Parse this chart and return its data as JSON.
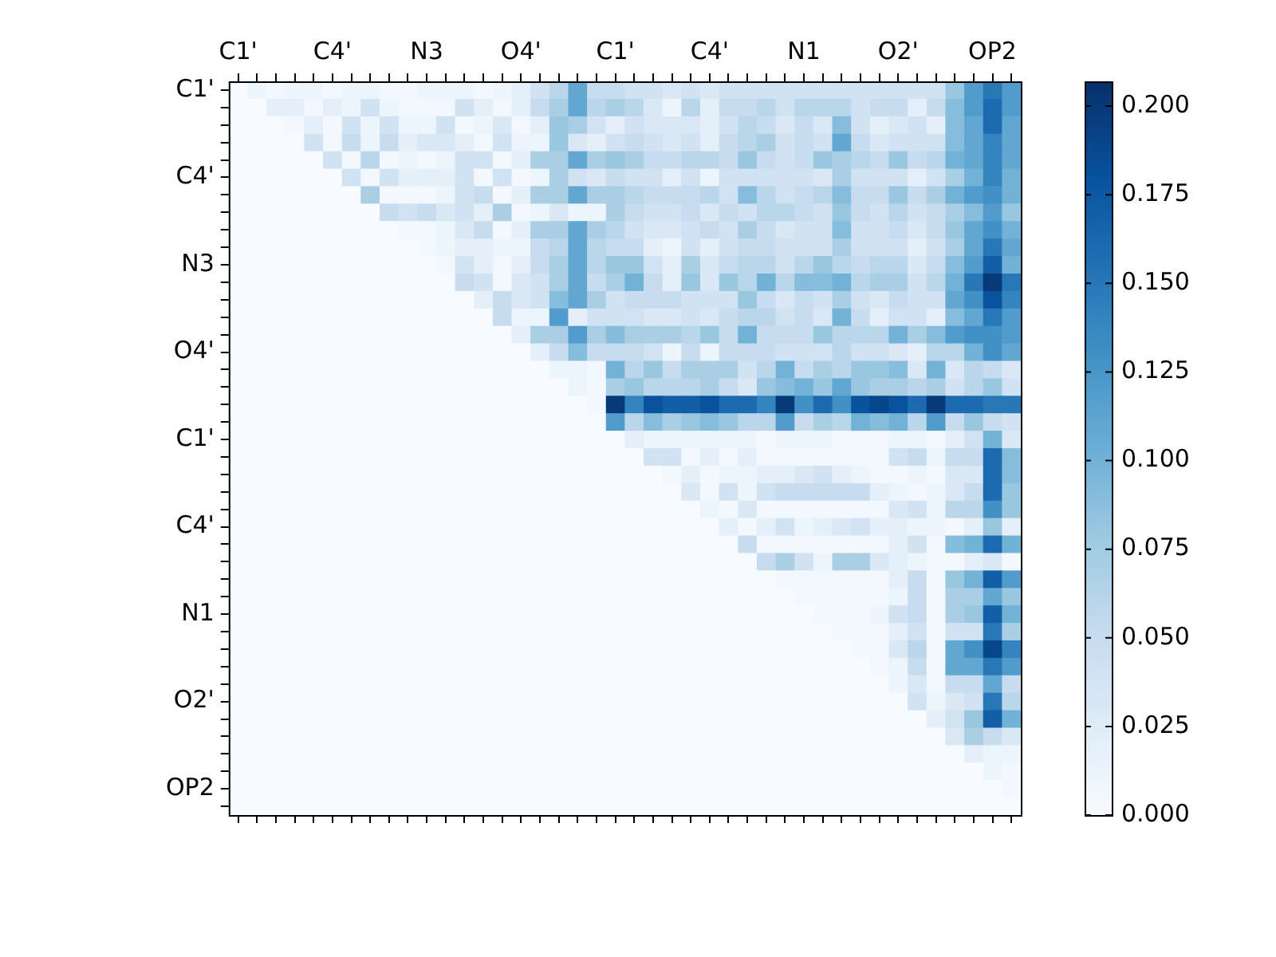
{
  "chart_data": {
    "type": "heatmap",
    "categories": [
      "C1'",
      null,
      null,
      null,
      null,
      "C4'",
      null,
      null,
      null,
      null,
      "N3",
      null,
      null,
      null,
      null,
      "O4'",
      null,
      null,
      null,
      null,
      "C1'",
      null,
      null,
      null,
      null,
      "C4'",
      null,
      null,
      null,
      null,
      "N1",
      null,
      null,
      null,
      null,
      "O2'",
      null,
      null,
      null,
      null,
      "OP2",
      null
    ],
    "y_categories": [
      "C1'",
      null,
      null,
      null,
      null,
      "C4'",
      null,
      null,
      null,
      null,
      "N3",
      null,
      null,
      null,
      null,
      "O4'",
      null,
      null,
      null,
      null,
      "C1'",
      null,
      null,
      null,
      null,
      "C4'",
      null,
      null,
      null,
      null,
      "N1",
      null,
      null,
      null,
      null,
      "O2'",
      null,
      null,
      null,
      null,
      "OP2",
      null
    ],
    "clim": [
      0,
      0.207
    ],
    "cticks": [
      {
        "value": 0,
        "label": "0.000"
      },
      {
        "value": 0.025,
        "label": "0.025"
      },
      {
        "value": 0.05,
        "label": "0.050"
      },
      {
        "value": 0.075,
        "label": "0.075"
      },
      {
        "value": 0.1,
        "label": "0.100"
      },
      {
        "value": 0.125,
        "label": "0.125"
      },
      {
        "value": 0.15,
        "label": "0.150"
      },
      {
        "value": 0.175,
        "label": "0.175"
      },
      {
        "value": 0.2,
        "label": "0.200"
      }
    ],
    "cells": [
      [
        0,
        0.01,
        0.005,
        0.01,
        0.01,
        0.005,
        0.01,
        0.01,
        0.005,
        0.005,
        0.01,
        0.01,
        0.01,
        0.005,
        0.01,
        0.02,
        0.04,
        0.06,
        0.11,
        0.05,
        0.05,
        0.04,
        0.04,
        0.03,
        0.04,
        0.03,
        0.04,
        0.04,
        0.04,
        0.04,
        0.04,
        0.04,
        0.04,
        0.04,
        0.04,
        0.04,
        0.04,
        0.04,
        0.08,
        0.12,
        0.15,
        0.12
      ],
      [
        0,
        0,
        0.02,
        0.02,
        0.005,
        0.02,
        0.01,
        0.04,
        0.01,
        0.005,
        0.005,
        0.005,
        0.04,
        0.02,
        0.005,
        0.02,
        0.05,
        0.07,
        0.11,
        0.06,
        0.07,
        0.06,
        0.03,
        0.01,
        0.06,
        0.02,
        0.05,
        0.05,
        0.06,
        0.04,
        0.06,
        0.06,
        0.06,
        0.04,
        0.05,
        0.05,
        0.02,
        0.05,
        0.09,
        0.12,
        0.16,
        0.12
      ],
      [
        0,
        0,
        0,
        0.005,
        0.02,
        0.005,
        0.04,
        0.01,
        0.04,
        0.01,
        0.01,
        0.04,
        0.005,
        0.01,
        0.03,
        0.005,
        0.02,
        0.08,
        0.07,
        0.04,
        0.02,
        0.04,
        0.03,
        0.03,
        0.03,
        0.02,
        0.04,
        0.06,
        0.05,
        0.03,
        0.05,
        0.03,
        0.09,
        0.04,
        0.02,
        0.03,
        0.04,
        0.02,
        0.09,
        0.11,
        0.16,
        0.11
      ],
      [
        0,
        0,
        0,
        0,
        0.04,
        0.005,
        0.05,
        0.01,
        0.05,
        0.02,
        0.03,
        0.03,
        0.02,
        0.005,
        0.04,
        0.01,
        0.01,
        0.08,
        0.03,
        0.02,
        0.04,
        0.05,
        0.04,
        0.03,
        0.04,
        0.02,
        0.05,
        0.06,
        0.07,
        0.04,
        0.05,
        0.04,
        0.11,
        0.05,
        0.03,
        0.04,
        0.04,
        0.04,
        0.09,
        0.11,
        0.14,
        0.11
      ],
      [
        0,
        0,
        0,
        0,
        0,
        0.04,
        0.005,
        0.06,
        0.005,
        0.01,
        0.005,
        0.01,
        0.04,
        0.04,
        0.005,
        0.02,
        0.07,
        0.07,
        0.11,
        0.07,
        0.08,
        0.07,
        0.05,
        0.05,
        0.06,
        0.06,
        0.05,
        0.08,
        0.05,
        0.04,
        0.05,
        0.08,
        0.07,
        0.06,
        0.05,
        0.08,
        0.05,
        0.06,
        0.1,
        0.11,
        0.14,
        0.11
      ],
      [
        0,
        0,
        0,
        0,
        0,
        0,
        0.04,
        0.005,
        0.04,
        0.02,
        0.02,
        0.02,
        0.04,
        0.005,
        0.04,
        0.005,
        0.01,
        0.07,
        0.04,
        0.03,
        0.05,
        0.04,
        0.04,
        0.02,
        0.04,
        0.01,
        0.04,
        0.04,
        0.04,
        0.04,
        0.04,
        0.03,
        0.07,
        0.04,
        0.04,
        0.04,
        0.02,
        0.04,
        0.07,
        0.1,
        0.14,
        0.1
      ],
      [
        0,
        0,
        0,
        0,
        0,
        0,
        0,
        0.07,
        0.005,
        0.005,
        0.005,
        0.01,
        0.04,
        0.05,
        0.005,
        0.02,
        0.07,
        0.07,
        0.11,
        0.07,
        0.07,
        0.06,
        0.05,
        0.05,
        0.05,
        0.06,
        0.04,
        0.09,
        0.06,
        0.04,
        0.05,
        0.06,
        0.09,
        0.05,
        0.05,
        0.08,
        0.05,
        0.07,
        0.1,
        0.12,
        0.13,
        0.1
      ],
      [
        0,
        0,
        0,
        0,
        0,
        0,
        0,
        0,
        0.05,
        0.04,
        0.05,
        0.03,
        0.04,
        0.02,
        0.07,
        0.005,
        0.01,
        0.03,
        0.01,
        0.01,
        0.07,
        0.05,
        0.04,
        0.04,
        0.05,
        0.03,
        0.05,
        0.04,
        0.06,
        0.06,
        0.05,
        0.04,
        0.08,
        0.05,
        0.04,
        0.06,
        0.04,
        0.05,
        0.07,
        0.09,
        0.12,
        0.08
      ],
      [
        0,
        0,
        0,
        0,
        0,
        0,
        0,
        0,
        0,
        0.005,
        0.005,
        0.01,
        0.03,
        0.05,
        0.005,
        0.02,
        0.07,
        0.07,
        0.11,
        0.07,
        0.06,
        0.04,
        0.03,
        0.03,
        0.04,
        0.05,
        0.04,
        0.07,
        0.05,
        0.03,
        0.04,
        0.04,
        0.09,
        0.04,
        0.04,
        0.05,
        0.03,
        0.05,
        0.08,
        0.11,
        0.13,
        0.1
      ],
      [
        0,
        0,
        0,
        0,
        0,
        0,
        0,
        0,
        0,
        0,
        0.005,
        0.01,
        0.02,
        0.02,
        0.01,
        0.01,
        0.05,
        0.06,
        0.11,
        0.06,
        0.05,
        0.05,
        0.02,
        0.01,
        0.04,
        0.02,
        0.04,
        0.05,
        0.05,
        0.04,
        0.04,
        0.04,
        0.07,
        0.04,
        0.04,
        0.04,
        0.02,
        0.04,
        0.07,
        0.11,
        0.15,
        0.11
      ],
      [
        0,
        0,
        0,
        0,
        0,
        0,
        0,
        0,
        0,
        0,
        0,
        0.005,
        0.04,
        0.02,
        0.005,
        0.02,
        0.05,
        0.07,
        0.11,
        0.06,
        0.08,
        0.08,
        0.04,
        0.02,
        0.07,
        0.03,
        0.05,
        0.06,
        0.06,
        0.04,
        0.06,
        0.08,
        0.06,
        0.05,
        0.06,
        0.06,
        0.03,
        0.05,
        0.09,
        0.12,
        0.17,
        0.1
      ],
      [
        0,
        0,
        0,
        0,
        0,
        0,
        0,
        0,
        0,
        0,
        0,
        0,
        0.05,
        0.04,
        0.005,
        0.03,
        0.04,
        0.07,
        0.11,
        0.05,
        0.07,
        0.1,
        0.05,
        0.02,
        0.08,
        0.03,
        0.08,
        0.06,
        0.1,
        0.06,
        0.09,
        0.09,
        0.1,
        0.06,
        0.07,
        0.07,
        0.04,
        0.06,
        0.1,
        0.15,
        0.2,
        0.15
      ],
      [
        0,
        0,
        0,
        0,
        0,
        0,
        0,
        0,
        0,
        0,
        0,
        0,
        0,
        0.02,
        0.05,
        0.03,
        0.04,
        0.09,
        0.11,
        0.07,
        0.04,
        0.05,
        0.05,
        0.05,
        0.04,
        0.04,
        0.04,
        0.08,
        0.05,
        0.03,
        0.05,
        0.04,
        0.07,
        0.04,
        0.03,
        0.05,
        0.04,
        0.04,
        0.11,
        0.13,
        0.18,
        0.14
      ],
      [
        0,
        0,
        0,
        0,
        0,
        0,
        0,
        0,
        0,
        0,
        0,
        0,
        0,
        0,
        0.05,
        0.01,
        0.01,
        0.12,
        0.02,
        0.04,
        0.04,
        0.04,
        0.03,
        0.03,
        0.04,
        0.03,
        0.05,
        0.06,
        0.06,
        0.04,
        0.05,
        0.03,
        0.1,
        0.05,
        0.02,
        0.04,
        0.04,
        0.02,
        0.09,
        0.11,
        0.15,
        0.12
      ],
      [
        0,
        0,
        0,
        0,
        0,
        0,
        0,
        0,
        0,
        0,
        0,
        0,
        0,
        0,
        0,
        0.02,
        0.07,
        0.07,
        0.12,
        0.07,
        0.09,
        0.07,
        0.07,
        0.07,
        0.06,
        0.08,
        0.05,
        0.1,
        0.05,
        0.05,
        0.05,
        0.08,
        0.06,
        0.06,
        0.06,
        0.1,
        0.07,
        0.09,
        0.12,
        0.13,
        0.13,
        0.12
      ],
      [
        0,
        0,
        0,
        0,
        0,
        0,
        0,
        0,
        0,
        0,
        0,
        0,
        0,
        0,
        0,
        0,
        0.02,
        0.05,
        0.09,
        0.05,
        0.05,
        0.05,
        0.04,
        0.01,
        0.05,
        0.01,
        0.05,
        0.05,
        0.05,
        0.04,
        0.04,
        0.04,
        0.06,
        0.04,
        0.04,
        0.03,
        0.02,
        0.06,
        0.06,
        0.1,
        0.13,
        0.11
      ],
      [
        0,
        0,
        0,
        0,
        0,
        0,
        0,
        0,
        0,
        0,
        0,
        0,
        0,
        0,
        0,
        0,
        0,
        0.01,
        0.01,
        0.005,
        0.1,
        0.06,
        0.08,
        0.05,
        0.07,
        0.07,
        0.07,
        0.04,
        0.06,
        0.1,
        0.05,
        0.07,
        0.06,
        0.08,
        0.08,
        0.09,
        0.03,
        0.1,
        0.03,
        0.06,
        0.05,
        0.03
      ],
      [
        0,
        0,
        0,
        0,
        0,
        0,
        0,
        0,
        0,
        0,
        0,
        0,
        0,
        0,
        0,
        0,
        0,
        0,
        0.01,
        0.005,
        0.07,
        0.08,
        0.06,
        0.06,
        0.06,
        0.07,
        0.05,
        0.03,
        0.08,
        0.09,
        0.1,
        0.08,
        0.11,
        0.08,
        0.07,
        0.07,
        0.06,
        0.07,
        0.04,
        0.06,
        0.08,
        0.04
      ],
      [
        0,
        0,
        0,
        0,
        0,
        0,
        0,
        0,
        0,
        0,
        0,
        0,
        0,
        0,
        0,
        0,
        0,
        0,
        0,
        0.005,
        0.2,
        0.14,
        0.18,
        0.17,
        0.17,
        0.18,
        0.16,
        0.16,
        0.14,
        0.2,
        0.13,
        0.16,
        0.13,
        0.18,
        0.19,
        0.18,
        0.16,
        0.2,
        0.16,
        0.16,
        0.15,
        0.15
      ],
      [
        0,
        0,
        0,
        0,
        0,
        0,
        0,
        0,
        0,
        0,
        0,
        0,
        0,
        0,
        0,
        0,
        0,
        0,
        0,
        0,
        0.12,
        0.06,
        0.09,
        0.07,
        0.08,
        0.09,
        0.08,
        0.06,
        0.06,
        0.12,
        0.05,
        0.07,
        0.06,
        0.1,
        0.09,
        0.1,
        0.06,
        0.12,
        0.05,
        0.08,
        0.05,
        0.04
      ],
      [
        0,
        0,
        0,
        0,
        0,
        0,
        0,
        0,
        0,
        0,
        0,
        0,
        0,
        0,
        0,
        0,
        0,
        0,
        0,
        0,
        0,
        0.02,
        0.01,
        0.01,
        0.01,
        0.01,
        0.01,
        0.01,
        0.005,
        0.01,
        0.01,
        0.01,
        0.005,
        0.005,
        0.005,
        0.01,
        0.01,
        0.005,
        0.02,
        0.04,
        0.1,
        0.03
      ],
      [
        0,
        0,
        0,
        0,
        0,
        0,
        0,
        0,
        0,
        0,
        0,
        0,
        0,
        0,
        0,
        0,
        0,
        0,
        0,
        0,
        0,
        0,
        0.04,
        0.04,
        0.005,
        0.02,
        0.005,
        0.02,
        0.005,
        0.005,
        0.005,
        0.005,
        0.005,
        0.005,
        0.005,
        0.04,
        0.05,
        0.01,
        0.05,
        0.05,
        0.16,
        0.09
      ],
      [
        0,
        0,
        0,
        0,
        0,
        0,
        0,
        0,
        0,
        0,
        0,
        0,
        0,
        0,
        0,
        0,
        0,
        0,
        0,
        0,
        0,
        0,
        0,
        0.005,
        0.02,
        0.005,
        0.01,
        0.01,
        0.02,
        0.02,
        0.03,
        0.04,
        0.02,
        0.01,
        0.005,
        0.005,
        0.01,
        0.005,
        0.03,
        0.03,
        0.16,
        0.09
      ],
      [
        0,
        0,
        0,
        0,
        0,
        0,
        0,
        0,
        0,
        0,
        0,
        0,
        0,
        0,
        0,
        0,
        0,
        0,
        0,
        0,
        0,
        0,
        0,
        0,
        0.03,
        0.005,
        0.04,
        0.01,
        0.04,
        0.05,
        0.05,
        0.05,
        0.05,
        0.05,
        0.02,
        0.01,
        0.005,
        0.01,
        0.03,
        0.05,
        0.16,
        0.08
      ],
      [
        0,
        0,
        0,
        0,
        0,
        0,
        0,
        0,
        0,
        0,
        0,
        0,
        0,
        0,
        0,
        0,
        0,
        0,
        0,
        0,
        0,
        0,
        0,
        0,
        0,
        0.01,
        0.005,
        0.03,
        0.005,
        0.005,
        0.005,
        0.005,
        0.005,
        0.005,
        0.005,
        0.03,
        0.04,
        0.01,
        0.06,
        0.06,
        0.13,
        0.08
      ],
      [
        0,
        0,
        0,
        0,
        0,
        0,
        0,
        0,
        0,
        0,
        0,
        0,
        0,
        0,
        0,
        0,
        0,
        0,
        0,
        0,
        0,
        0,
        0,
        0,
        0,
        0,
        0.02,
        0.005,
        0.02,
        0.04,
        0.01,
        0.02,
        0.03,
        0.04,
        0.02,
        0.02,
        0.01,
        0.01,
        0.005,
        0.02,
        0.08,
        0.02
      ],
      [
        0,
        0,
        0,
        0,
        0,
        0,
        0,
        0,
        0,
        0,
        0,
        0,
        0,
        0,
        0,
        0,
        0,
        0,
        0,
        0,
        0,
        0,
        0,
        0,
        0,
        0,
        0,
        0.05,
        0.005,
        0.005,
        0.005,
        0.005,
        0.005,
        0.005,
        0.005,
        0.02,
        0.04,
        0.005,
        0.09,
        0.1,
        0.16,
        0.1
      ],
      [
        0,
        0,
        0,
        0,
        0,
        0,
        0,
        0,
        0,
        0,
        0,
        0,
        0,
        0,
        0,
        0,
        0,
        0,
        0,
        0,
        0,
        0,
        0,
        0,
        0,
        0,
        0,
        0,
        0.05,
        0.07,
        0.04,
        0.01,
        0.07,
        0.07,
        0.03,
        0.02,
        0.01,
        0.005,
        0.005,
        0.02,
        0.03,
        0.005
      ],
      [
        0,
        0,
        0,
        0,
        0,
        0,
        0,
        0,
        0,
        0,
        0,
        0,
        0,
        0,
        0,
        0,
        0,
        0,
        0,
        0,
        0,
        0,
        0,
        0,
        0,
        0,
        0,
        0,
        0,
        0.005,
        0.005,
        0.005,
        0.005,
        0.005,
        0.005,
        0.02,
        0.05,
        0.005,
        0.08,
        0.1,
        0.17,
        0.12
      ],
      [
        0,
        0,
        0,
        0,
        0,
        0,
        0,
        0,
        0,
        0,
        0,
        0,
        0,
        0,
        0,
        0,
        0,
        0,
        0,
        0,
        0,
        0,
        0,
        0,
        0,
        0,
        0,
        0,
        0,
        0,
        0.005,
        0.005,
        0.005,
        0.005,
        0.005,
        0.01,
        0.05,
        0.005,
        0.07,
        0.07,
        0.11,
        0.08
      ],
      [
        0,
        0,
        0,
        0,
        0,
        0,
        0,
        0,
        0,
        0,
        0,
        0,
        0,
        0,
        0,
        0,
        0,
        0,
        0,
        0,
        0,
        0,
        0,
        0,
        0,
        0,
        0,
        0,
        0,
        0,
        0,
        0.005,
        0.005,
        0.005,
        0.01,
        0.04,
        0.05,
        0.005,
        0.07,
        0.08,
        0.17,
        0.1
      ],
      [
        0,
        0,
        0,
        0,
        0,
        0,
        0,
        0,
        0,
        0,
        0,
        0,
        0,
        0,
        0,
        0,
        0,
        0,
        0,
        0,
        0,
        0,
        0,
        0,
        0,
        0,
        0,
        0,
        0,
        0,
        0,
        0,
        0.005,
        0.005,
        0.005,
        0.02,
        0.04,
        0.005,
        0.04,
        0.04,
        0.15,
        0.07
      ],
      [
        0,
        0,
        0,
        0,
        0,
        0,
        0,
        0,
        0,
        0,
        0,
        0,
        0,
        0,
        0,
        0,
        0,
        0,
        0,
        0,
        0,
        0,
        0,
        0,
        0,
        0,
        0,
        0,
        0,
        0,
        0,
        0,
        0,
        0.005,
        0.005,
        0.03,
        0.06,
        0.005,
        0.11,
        0.13,
        0.19,
        0.14
      ],
      [
        0,
        0,
        0,
        0,
        0,
        0,
        0,
        0,
        0,
        0,
        0,
        0,
        0,
        0,
        0,
        0,
        0,
        0,
        0,
        0,
        0,
        0,
        0,
        0,
        0,
        0,
        0,
        0,
        0,
        0,
        0,
        0,
        0,
        0,
        0.005,
        0.01,
        0.05,
        0.005,
        0.11,
        0.11,
        0.15,
        0.12
      ],
      [
        0,
        0,
        0,
        0,
        0,
        0,
        0,
        0,
        0,
        0,
        0,
        0,
        0,
        0,
        0,
        0,
        0,
        0,
        0,
        0,
        0,
        0,
        0,
        0,
        0,
        0,
        0,
        0,
        0,
        0,
        0,
        0,
        0,
        0,
        0,
        0.01,
        0.03,
        0.005,
        0.05,
        0.05,
        0.11,
        0.05
      ],
      [
        0,
        0,
        0,
        0,
        0,
        0,
        0,
        0,
        0,
        0,
        0,
        0,
        0,
        0,
        0,
        0,
        0,
        0,
        0,
        0,
        0,
        0,
        0,
        0,
        0,
        0,
        0,
        0,
        0,
        0,
        0,
        0,
        0,
        0,
        0,
        0,
        0.04,
        0.01,
        0.03,
        0.04,
        0.15,
        0.06
      ],
      [
        0,
        0,
        0,
        0,
        0,
        0,
        0,
        0,
        0,
        0,
        0,
        0,
        0,
        0,
        0,
        0,
        0,
        0,
        0,
        0,
        0,
        0,
        0,
        0,
        0,
        0,
        0,
        0,
        0,
        0,
        0,
        0,
        0,
        0,
        0,
        0,
        0,
        0.02,
        0.04,
        0.08,
        0.17,
        0.1
      ],
      [
        0,
        0,
        0,
        0,
        0,
        0,
        0,
        0,
        0,
        0,
        0,
        0,
        0,
        0,
        0,
        0,
        0,
        0,
        0,
        0,
        0,
        0,
        0,
        0,
        0,
        0,
        0,
        0,
        0,
        0,
        0,
        0,
        0,
        0,
        0,
        0,
        0,
        0,
        0.03,
        0.07,
        0.05,
        0.03
      ],
      [
        0,
        0,
        0,
        0,
        0,
        0,
        0,
        0,
        0,
        0,
        0,
        0,
        0,
        0,
        0,
        0,
        0,
        0,
        0,
        0,
        0,
        0,
        0,
        0,
        0,
        0,
        0,
        0,
        0,
        0,
        0,
        0,
        0,
        0,
        0,
        0,
        0,
        0,
        0,
        0.02,
        0.01,
        0.01
      ],
      [
        0,
        0,
        0,
        0,
        0,
        0,
        0,
        0,
        0,
        0,
        0,
        0,
        0,
        0,
        0,
        0,
        0,
        0,
        0,
        0,
        0,
        0,
        0,
        0,
        0,
        0,
        0,
        0,
        0,
        0,
        0,
        0,
        0,
        0,
        0,
        0,
        0,
        0,
        0,
        0,
        0.01,
        0.005
      ],
      [
        0,
        0,
        0,
        0,
        0,
        0,
        0,
        0,
        0,
        0,
        0,
        0,
        0,
        0,
        0,
        0,
        0,
        0,
        0,
        0,
        0,
        0,
        0,
        0,
        0,
        0,
        0,
        0,
        0,
        0,
        0,
        0,
        0,
        0,
        0,
        0,
        0,
        0,
        0,
        0,
        0,
        0.005
      ],
      [
        0,
        0,
        0,
        0,
        0,
        0,
        0,
        0,
        0,
        0,
        0,
        0,
        0,
        0,
        0,
        0,
        0,
        0,
        0,
        0,
        0,
        0,
        0,
        0,
        0,
        0,
        0,
        0,
        0,
        0,
        0,
        0,
        0,
        0,
        0,
        0,
        0,
        0,
        0,
        0,
        0,
        0
      ]
    ]
  }
}
